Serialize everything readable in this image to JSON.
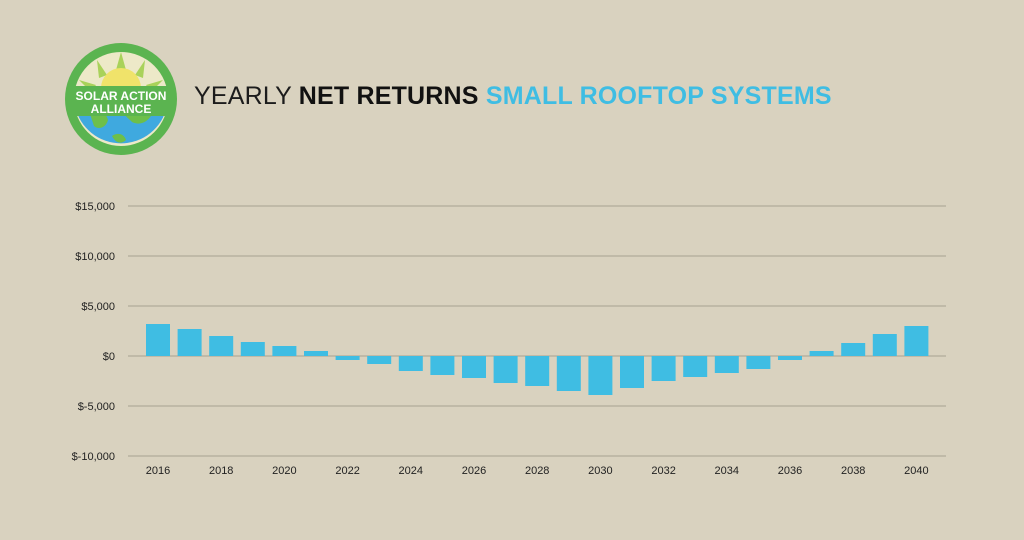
{
  "header": {
    "logo_text_line1": "SOLAR ACTION",
    "logo_text_line2": "ALLIANCE",
    "title_part1": "YEARLY ",
    "title_part2": "NET RETURNS",
    "title_part3": " SMALL ROOFTOP SYSTEMS"
  },
  "colors": {
    "background": "#d9d2bf",
    "bar": "#3fbde3",
    "title_accent": "#3fbde3",
    "gridline": "#a8a291",
    "logo_green": "#5bb450"
  },
  "chart_data": {
    "type": "bar",
    "title": "YEARLY NET RETURNS SMALL ROOFTOP SYSTEMS",
    "xlabel": "",
    "ylabel": "",
    "categories": [
      "2016",
      "2017",
      "2018",
      "2019",
      "2020",
      "2021",
      "2022",
      "2023",
      "2024",
      "2025",
      "2026",
      "2027",
      "2028",
      "2029",
      "2030",
      "2031",
      "2032",
      "2033",
      "2034",
      "2035",
      "2036",
      "2037",
      "2038",
      "2039",
      "2040"
    ],
    "values": [
      3200,
      2700,
      2000,
      1400,
      1000,
      500,
      -400,
      -800,
      -1500,
      -1900,
      -2200,
      -2700,
      -3000,
      -3500,
      -3900,
      -3200,
      -2500,
      -2100,
      -1700,
      -1300,
      -400,
      500,
      1300,
      2200,
      3000
    ],
    "x_tick_labels": [
      "2016",
      "2018",
      "2020",
      "2022",
      "2024",
      "2026",
      "2028",
      "2030",
      "2032",
      "2034",
      "2036",
      "2038",
      "2040"
    ],
    "y_ticks": [
      {
        "value": 15000,
        "label": "$15,000"
      },
      {
        "value": 10000,
        "label": "$10,000"
      },
      {
        "value": 5000,
        "label": "$5,000"
      },
      {
        "value": 0,
        "label": "$0"
      },
      {
        "value": -5000,
        "label": "$-5,000"
      },
      {
        "value": -10000,
        "label": "$-10,000"
      }
    ],
    "ylim": [
      -10000,
      15000
    ],
    "grid": true,
    "legend": "none"
  }
}
